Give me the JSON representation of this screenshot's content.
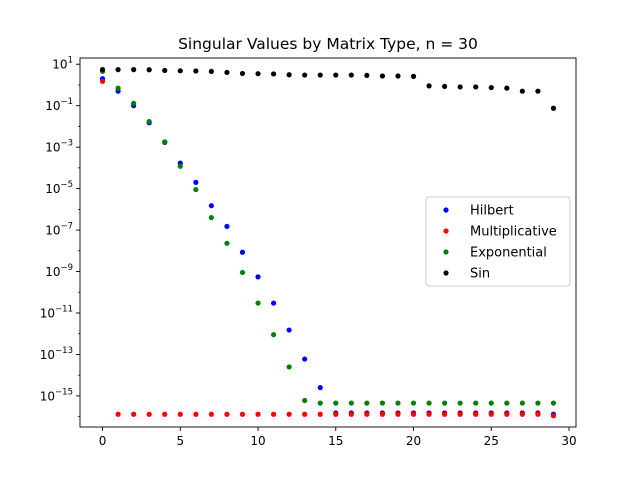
{
  "chart_data": {
    "type": "scatter",
    "title": "Singular Values by Matrix Type, n = 30",
    "xlabel": "",
    "ylabel": "",
    "xlim": [
      -1.45,
      30.45
    ],
    "ylim_log10": [
      -16.5,
      1.3
    ],
    "y_scale": "log",
    "x_ticks": [
      0,
      5,
      10,
      15,
      20,
      25,
      30
    ],
    "x_tick_labels": [
      "0",
      "5",
      "10",
      "15",
      "20",
      "25",
      "30"
    ],
    "y_ticks_log10": [
      1,
      -1,
      -3,
      -5,
      -7,
      -9,
      -11,
      -13,
      -15
    ],
    "y_tick_labels": [
      {
        "base": "10",
        "exp": "1"
      },
      {
        "base": "10",
        "exp": "−1"
      },
      {
        "base": "10",
        "exp": "−3"
      },
      {
        "base": "10",
        "exp": "−5"
      },
      {
        "base": "10",
        "exp": "−7"
      },
      {
        "base": "10",
        "exp": "−9"
      },
      {
        "base": "10",
        "exp": "−11"
      },
      {
        "base": "10",
        "exp": "−13"
      },
      {
        "base": "10",
        "exp": "−15"
      }
    ],
    "grid": false,
    "legend_position": "center-right",
    "series": [
      {
        "name": "Hilbert",
        "color": "#0000ff",
        "x": [
          0,
          1,
          2,
          3,
          4,
          5,
          6,
          7,
          8,
          9,
          10,
          11,
          12,
          13,
          14,
          15,
          16,
          17,
          18,
          19,
          20,
          21,
          22,
          23,
          24,
          25,
          26,
          27,
          28,
          29
        ],
        "y": [
          2.0,
          0.5,
          0.1,
          0.015,
          0.0017,
          0.00017,
          2e-05,
          1.5e-06,
          1.5e-07,
          8.5e-09,
          5.5e-10,
          3e-11,
          1.5e-12,
          6e-14,
          2.5e-15,
          1.5e-16,
          1.5e-16,
          1.5e-16,
          1.5e-16,
          1.5e-16,
          1.5e-16,
          1.5e-16,
          1.5e-16,
          1.5e-16,
          1.5e-16,
          1.5e-16,
          1.5e-16,
          1.5e-16,
          1.5e-16,
          1.3e-16
        ]
      },
      {
        "name": "Multiplicative",
        "color": "#ff0000",
        "x": [
          0,
          1,
          2,
          3,
          4,
          5,
          6,
          7,
          8,
          9,
          10,
          11,
          12,
          13,
          14,
          15,
          16,
          17,
          18,
          19,
          20,
          21,
          22,
          23,
          24,
          25,
          26,
          27,
          28,
          29
        ],
        "y": [
          1.5,
          1.3e-16,
          1.3e-16,
          1.3e-16,
          1.3e-16,
          1.3e-16,
          1.3e-16,
          1.3e-16,
          1.3e-16,
          1.3e-16,
          1.3e-16,
          1.3e-16,
          1.3e-16,
          1.3e-16,
          1.3e-16,
          1.3e-16,
          1.3e-16,
          1.3e-16,
          1.3e-16,
          1.3e-16,
          1.3e-16,
          1.3e-16,
          1.3e-16,
          1.3e-16,
          1.3e-16,
          1.3e-16,
          1.3e-16,
          1.3e-16,
          1.3e-16,
          1.1e-16
        ]
      },
      {
        "name": "Exponential",
        "color": "#008000",
        "x": [
          0,
          1,
          2,
          3,
          4,
          5,
          6,
          7,
          8,
          9,
          10,
          11,
          12,
          13,
          14,
          15,
          16,
          17,
          18,
          19,
          20,
          21,
          22,
          23,
          24,
          25,
          26,
          27,
          28,
          29
        ],
        "y": [
          4.5,
          0.7,
          0.13,
          0.017,
          0.0018,
          0.00012,
          9e-06,
          4e-07,
          2.3e-08,
          9e-10,
          3e-11,
          9e-13,
          2.5e-14,
          6e-16,
          4.5e-16,
          4.5e-16,
          4.5e-16,
          4.5e-16,
          4.5e-16,
          4.5e-16,
          4.5e-16,
          4.5e-16,
          4.5e-16,
          4.5e-16,
          4.5e-16,
          4.5e-16,
          4.5e-16,
          4.5e-16,
          4.5e-16,
          4.5e-16
        ]
      },
      {
        "name": "Sin",
        "color": "#000000",
        "x": [
          0,
          1,
          2,
          3,
          4,
          5,
          6,
          7,
          8,
          9,
          10,
          11,
          12,
          13,
          14,
          15,
          16,
          17,
          18,
          19,
          20,
          21,
          22,
          23,
          24,
          25,
          26,
          27,
          28,
          29
        ],
        "y": [
          5.5,
          5.5,
          5.5,
          5.4,
          5.0,
          4.8,
          4.7,
          4.5,
          4.0,
          3.6,
          3.5,
          3.4,
          3.1,
          3.0,
          3.0,
          3.0,
          3.0,
          2.9,
          2.7,
          2.7,
          2.6,
          0.9,
          0.85,
          0.8,
          0.8,
          0.75,
          0.7,
          0.5,
          0.5,
          0.075
        ]
      }
    ]
  }
}
